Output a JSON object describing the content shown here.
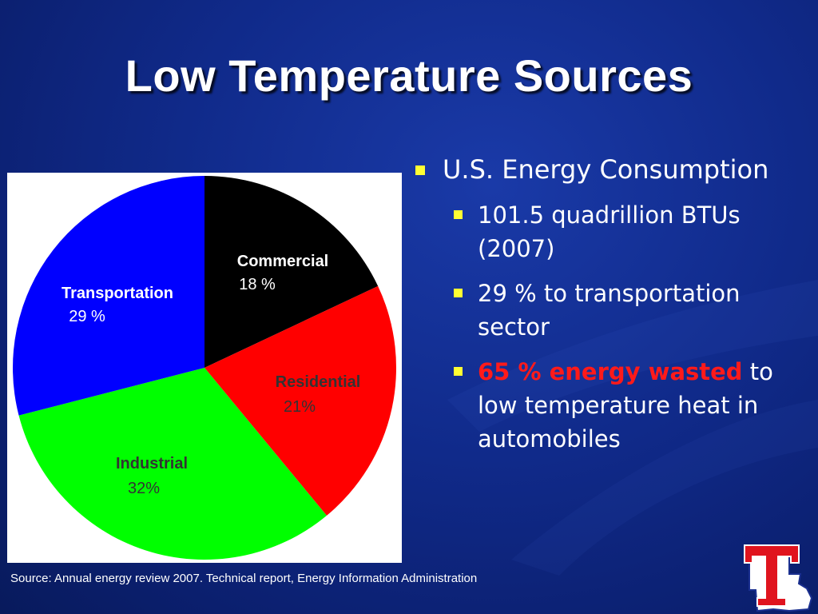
{
  "slide": {
    "title": "Low Temperature Sources",
    "source": "Source:  Annual energy review 2007. Technical report, Energy Information Administration",
    "logo_letter": "T"
  },
  "bullets": {
    "main": "U.S. Energy Consumption",
    "sub": [
      {
        "text": "101.5 quadrillion BTUs (2007)"
      },
      {
        "text": "29 % to transportation sector"
      },
      {
        "highlight": "65 % energy wasted",
        "rest": " to low temperature heat in automobiles"
      }
    ]
  },
  "chart_data": {
    "type": "pie",
    "title": "",
    "slices": [
      {
        "label": "Commercial",
        "pct_label": "18 %",
        "value": 18,
        "color": "#000000"
      },
      {
        "label": "Residential",
        "pct_label": "21%",
        "value": 21,
        "color": "#ff0000"
      },
      {
        "label": "Industrial",
        "pct_label": "32%",
        "value": 32,
        "color": "#00ff00"
      },
      {
        "label": "Transportation",
        "pct_label": "29 %",
        "value": 29,
        "color": "#0000ff"
      }
    ],
    "label_colors": {
      "Commercial": "#ffffff",
      "Residential": "#333333",
      "Industrial": "#333333",
      "Transportation": "#ffffff"
    }
  },
  "colors": {
    "background": "#102a8a",
    "bullet_square": "#ffff33",
    "highlight": "#ff1a1a",
    "logo_red": "#e0141e",
    "logo_blue": "#1a2f8f"
  }
}
